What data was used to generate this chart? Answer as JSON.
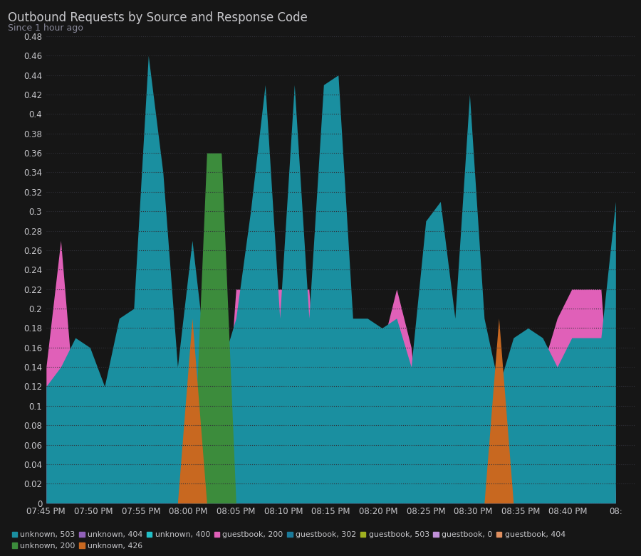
{
  "title": "Outbound Requests by Source and Response Code",
  "subtitle": "Since 1 hour ago",
  "bg_color": "#161616",
  "text_color": "#c8c8cc",
  "subtitle_color": "#888899",
  "grid_color": "#303038",
  "ylim_max": 0.48,
  "ytick_step": 0.02,
  "xtick_labels": [
    "07:45 PM",
    "07:50 PM",
    "07:55 PM",
    "08:00 PM",
    "08:05 PM",
    "08:10 PM",
    "08:15 PM",
    "08:20 PM",
    "08:25 PM",
    "08:30 PM",
    "08:35 PM",
    "08:40 PM",
    "08:"
  ],
  "series": [
    {
      "label": "guestbook, 200",
      "color": "#e060b8",
      "alpha": 1.0,
      "data": [
        0.14,
        0.27,
        0.09,
        0.14,
        0.09,
        0.01,
        0.04,
        0.01,
        0.01,
        0.14,
        0.01,
        0.01,
        0.01,
        0.22,
        0.22,
        0.22,
        0.22,
        0.22,
        0.22,
        0.01,
        0.01,
        0.01,
        0.01,
        0.16,
        0.22,
        0.16,
        0.01,
        0.01,
        0.16,
        0.01,
        0.01,
        0.01,
        0.14,
        0.14,
        0.14,
        0.19,
        0.22,
        0.22,
        0.22,
        0.01
      ]
    },
    {
      "label": "unknown, 503",
      "color": "#1a8fa0",
      "alpha": 1.0,
      "data": [
        0.12,
        0.14,
        0.17,
        0.16,
        0.12,
        0.19,
        0.2,
        0.46,
        0.34,
        0.14,
        0.27,
        0.14,
        0.14,
        0.19,
        0.3,
        0.43,
        0.19,
        0.43,
        0.19,
        0.43,
        0.44,
        0.19,
        0.19,
        0.18,
        0.19,
        0.14,
        0.29,
        0.31,
        0.19,
        0.42,
        0.19,
        0.12,
        0.17,
        0.18,
        0.17,
        0.14,
        0.17,
        0.17,
        0.17,
        0.31
      ]
    },
    {
      "label": "unknown, 200",
      "color": "#3c8c3c",
      "alpha": 1.0,
      "data": [
        0.0,
        0.0,
        0.0,
        0.0,
        0.0,
        0.0,
        0.0,
        0.0,
        0.0,
        0.0,
        0.0,
        0.36,
        0.36,
        0.0,
        0.0,
        0.0,
        0.0,
        0.0,
        0.0,
        0.0,
        0.0,
        0.0,
        0.0,
        0.0,
        0.0,
        0.0,
        0.0,
        0.0,
        0.0,
        0.0,
        0.0,
        0.0,
        0.0,
        0.0,
        0.0,
        0.0,
        0.0,
        0.0,
        0.0,
        0.0
      ]
    },
    {
      "label": "unknown, 426",
      "color": "#c86820",
      "alpha": 1.0,
      "data": [
        0.0,
        0.0,
        0.0,
        0.0,
        0.0,
        0.0,
        0.0,
        0.0,
        0.0,
        0.0,
        0.19,
        0.0,
        0.0,
        0.0,
        0.0,
        0.0,
        0.0,
        0.0,
        0.0,
        0.0,
        0.0,
        0.0,
        0.0,
        0.0,
        0.0,
        0.0,
        0.0,
        0.0,
        0.0,
        0.0,
        0.0,
        0.19,
        0.0,
        0.0,
        0.0,
        0.0,
        0.0,
        0.0,
        0.0,
        0.0
      ]
    },
    {
      "label": "unknown, 404",
      "color": "#9060b8",
      "alpha": 1.0,
      "data": [
        0.0,
        0.0,
        0.0,
        0.0,
        0.0,
        0.0,
        0.0,
        0.0,
        0.0,
        0.0,
        0.0,
        0.0,
        0.0,
        0.0,
        0.0,
        0.0,
        0.0,
        0.0,
        0.0,
        0.0,
        0.0,
        0.0,
        0.0,
        0.0,
        0.0,
        0.0,
        0.0,
        0.0,
        0.0,
        0.0,
        0.0,
        0.0,
        0.0,
        0.0,
        0.0,
        0.0,
        0.0,
        0.0,
        0.0,
        0.0
      ]
    },
    {
      "label": "unknown, 400",
      "color": "#22c0c8",
      "alpha": 1.0,
      "data": [
        0.0,
        0.0,
        0.0,
        0.0,
        0.0,
        0.0,
        0.0,
        0.0,
        0.0,
        0.0,
        0.0,
        0.0,
        0.0,
        0.0,
        0.0,
        0.0,
        0.0,
        0.0,
        0.0,
        0.0,
        0.0,
        0.0,
        0.0,
        0.0,
        0.0,
        0.0,
        0.0,
        0.0,
        0.0,
        0.0,
        0.0,
        0.0,
        0.0,
        0.0,
        0.0,
        0.0,
        0.0,
        0.0,
        0.0,
        0.0
      ]
    },
    {
      "label": "guestbook, 302",
      "color": "#1a7a9a",
      "alpha": 1.0,
      "data": [
        0.0,
        0.0,
        0.0,
        0.0,
        0.0,
        0.0,
        0.0,
        0.0,
        0.0,
        0.0,
        0.0,
        0.0,
        0.0,
        0.0,
        0.0,
        0.0,
        0.0,
        0.0,
        0.0,
        0.0,
        0.0,
        0.0,
        0.0,
        0.0,
        0.0,
        0.0,
        0.0,
        0.0,
        0.0,
        0.0,
        0.0,
        0.0,
        0.0,
        0.0,
        0.0,
        0.0,
        0.0,
        0.0,
        0.0,
        0.0
      ]
    },
    {
      "label": "guestbook, 503",
      "color": "#a0b020",
      "alpha": 1.0,
      "data": [
        0.0,
        0.0,
        0.0,
        0.0,
        0.0,
        0.0,
        0.0,
        0.0,
        0.0,
        0.0,
        0.0,
        0.0,
        0.0,
        0.0,
        0.0,
        0.0,
        0.0,
        0.0,
        0.0,
        0.0,
        0.0,
        0.0,
        0.0,
        0.0,
        0.0,
        0.0,
        0.0,
        0.0,
        0.0,
        0.0,
        0.0,
        0.0,
        0.0,
        0.0,
        0.0,
        0.0,
        0.0,
        0.0,
        0.0,
        0.0
      ]
    },
    {
      "label": "guestbook, 0",
      "color": "#c090d8",
      "alpha": 1.0,
      "data": [
        0.0,
        0.0,
        0.0,
        0.0,
        0.0,
        0.0,
        0.0,
        0.0,
        0.0,
        0.0,
        0.0,
        0.0,
        0.0,
        0.0,
        0.0,
        0.0,
        0.0,
        0.0,
        0.0,
        0.0,
        0.0,
        0.0,
        0.0,
        0.0,
        0.0,
        0.0,
        0.0,
        0.0,
        0.0,
        0.0,
        0.0,
        0.0,
        0.0,
        0.0,
        0.0,
        0.0,
        0.0,
        0.0,
        0.0,
        0.0
      ]
    },
    {
      "label": "guestbook, 404",
      "color": "#e09060",
      "alpha": 1.0,
      "data": [
        0.0,
        0.0,
        0.0,
        0.0,
        0.0,
        0.0,
        0.0,
        0.0,
        0.0,
        0.0,
        0.0,
        0.0,
        0.0,
        0.0,
        0.0,
        0.0,
        0.0,
        0.0,
        0.0,
        0.0,
        0.0,
        0.0,
        0.0,
        0.0,
        0.0,
        0.0,
        0.0,
        0.0,
        0.0,
        0.0,
        0.0,
        0.0,
        0.0,
        0.0,
        0.0,
        0.0,
        0.0,
        0.0,
        0.0,
        0.0
      ]
    }
  ],
  "legend_order": [
    {
      "label": "unknown, 503",
      "color": "#1a8fa0"
    },
    {
      "label": "unknown, 200",
      "color": "#3c8c3c"
    },
    {
      "label": "unknown, 404",
      "color": "#9060b8"
    },
    {
      "label": "unknown, 426",
      "color": "#c86820"
    },
    {
      "label": "unknown, 400",
      "color": "#22c0c8"
    },
    {
      "label": "guestbook, 200",
      "color": "#e060b8"
    },
    {
      "label": "guestbook, 302",
      "color": "#1a7a9a"
    },
    {
      "label": "guestbook, 503",
      "color": "#a0b020"
    },
    {
      "label": "guestbook, 0",
      "color": "#c090d8"
    },
    {
      "label": "guestbook, 404",
      "color": "#e09060"
    }
  ]
}
